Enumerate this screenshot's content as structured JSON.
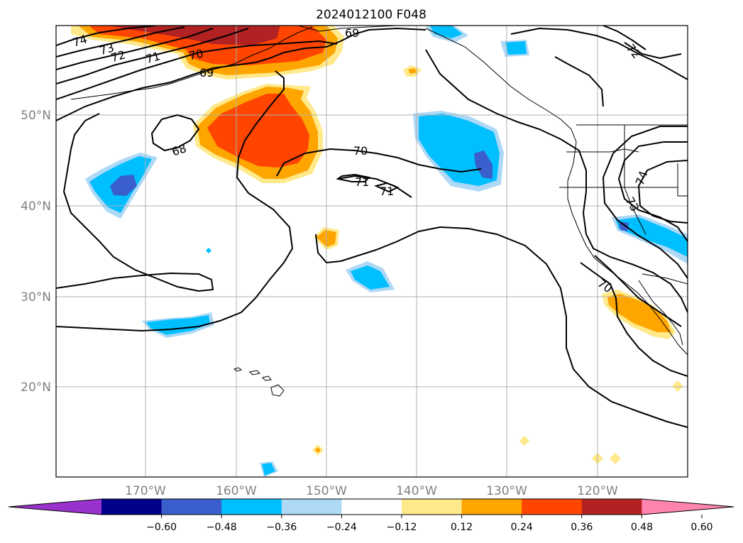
{
  "title": "2024012100 F048",
  "lon_ticks": [
    "170°W",
    "160°W",
    "150°W",
    "140°W",
    "130°W",
    "120°W"
  ],
  "lat_ticks": [
    "50°N",
    "40°N",
    "30°N",
    "20°N"
  ],
  "colorbar": {
    "labels": [
      "−0.60",
      "−0.48",
      "−0.36",
      "−0.24",
      "−0.12",
      "0.12",
      "0.24",
      "0.36",
      "0.48",
      "0.60"
    ],
    "colors": [
      "#9932cc",
      "#00008b",
      "#3a5fcd",
      "#00bfff",
      "#add8f6",
      "#ffffff",
      "#ffe98a",
      "#ffa500",
      "#ff4500",
      "#b22222",
      "#ff85b0"
    ]
  },
  "contour_labels": [
    "74",
    "73",
    "72",
    "71",
    "70",
    "69",
    "69",
    "68",
    "70",
    "71",
    "71",
    "72",
    "74",
    "73",
    "70"
  ],
  "colors": {
    "contour": "#000000",
    "coast": "#000000",
    "grid": "#b0b0b0",
    "tick_text": "#808080"
  }
}
